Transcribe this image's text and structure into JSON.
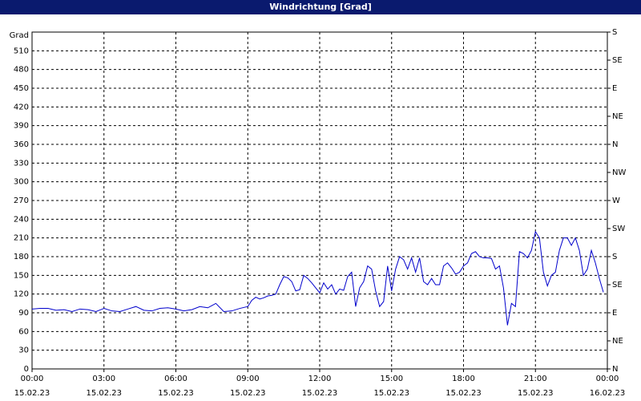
{
  "chart_data": {
    "type": "line",
    "title": "Windrichtung [Grad]",
    "y_label": "Grad",
    "x": [
      0,
      20,
      40,
      60,
      80,
      100,
      120,
      140,
      160,
      180,
      200,
      220,
      240,
      260,
      280,
      300,
      320,
      340,
      360,
      380,
      400,
      420,
      440,
      460,
      480,
      500,
      520,
      540,
      550,
      560,
      570,
      580,
      590,
      600,
      610,
      620,
      630,
      640,
      650,
      660,
      670,
      680,
      690,
      700,
      710,
      720,
      730,
      740,
      750,
      760,
      770,
      780,
      790,
      800,
      810,
      820,
      830,
      840,
      850,
      860,
      870,
      880,
      890,
      900,
      910,
      920,
      930,
      940,
      950,
      960,
      970,
      980,
      990,
      1000,
      1010,
      1020,
      1030,
      1040,
      1050,
      1060,
      1070,
      1080,
      1090,
      1100,
      1110,
      1120,
      1130,
      1140,
      1150,
      1160,
      1170,
      1180,
      1190,
      1200,
      1210,
      1220,
      1230,
      1240,
      1250,
      1260,
      1270,
      1280,
      1290,
      1300,
      1310,
      1320,
      1330,
      1340,
      1350,
      1360,
      1370,
      1380,
      1390,
      1400,
      1410,
      1420,
      1430
    ],
    "series": [
      {
        "name": "Windrichtung",
        "color": "#0000cc",
        "values": [
          96,
          97,
          97,
          94,
          95,
          92,
          96,
          95,
          92,
          97,
          93,
          92,
          96,
          100,
          94,
          93,
          97,
          98,
          96,
          93,
          95,
          100,
          98,
          105,
          92,
          93,
          97,
          100,
          110,
          115,
          112,
          114,
          117,
          118,
          120,
          135,
          148,
          146,
          140,
          125,
          127,
          150,
          145,
          138,
          130,
          122,
          138,
          128,
          135,
          120,
          128,
          126,
          148,
          155,
          100,
          130,
          140,
          165,
          160,
          125,
          100,
          108,
          165,
          125,
          160,
          180,
          175,
          160,
          178,
          155,
          178,
          140,
          135,
          145,
          135,
          135,
          165,
          170,
          162,
          152,
          155,
          165,
          170,
          185,
          188,
          180,
          178,
          178,
          177,
          160,
          165,
          130,
          70,
          105,
          100,
          188,
          185,
          178,
          190,
          220,
          210,
          155,
          133,
          150,
          155,
          190,
          210,
          210,
          198,
          210,
          190,
          150,
          160,
          190,
          170,
          145,
          123
        ]
      }
    ],
    "xlim": [
      0,
      1440
    ],
    "xticks": [
      {
        "value": 0,
        "label": "00:00",
        "date": "15.02.23"
      },
      {
        "value": 180,
        "label": "03:00",
        "date": "15.02.23"
      },
      {
        "value": 360,
        "label": "06:00",
        "date": "15.02.23"
      },
      {
        "value": 540,
        "label": "09:00",
        "date": "15.02.23"
      },
      {
        "value": 720,
        "label": "12:00",
        "date": "15.02.23"
      },
      {
        "value": 900,
        "label": "15:00",
        "date": "15.02.23"
      },
      {
        "value": 1080,
        "label": "18:00",
        "date": "15.02.23"
      },
      {
        "value": 1260,
        "label": "21:00",
        "date": "15.02.23"
      },
      {
        "value": 1440,
        "label": "00:00",
        "date": "16.02.23"
      }
    ],
    "ylim": [
      0,
      540
    ],
    "yticks": [
      0,
      30,
      60,
      90,
      120,
      150,
      180,
      210,
      240,
      270,
      300,
      330,
      360,
      390,
      420,
      450,
      480,
      510
    ],
    "y2lim": [
      0,
      540
    ],
    "y2ticks": [
      {
        "value": 0,
        "label": "N"
      },
      {
        "value": 45,
        "label": "NE"
      },
      {
        "value": 90,
        "label": "E"
      },
      {
        "value": 135,
        "label": "SE"
      },
      {
        "value": 180,
        "label": "S"
      },
      {
        "value": 225,
        "label": "SW"
      },
      {
        "value": 270,
        "label": "W"
      },
      {
        "value": 315,
        "label": "NW"
      },
      {
        "value": 360,
        "label": "N"
      },
      {
        "value": 405,
        "label": "NE"
      },
      {
        "value": 450,
        "label": "E"
      },
      {
        "value": 495,
        "label": "SE"
      },
      {
        "value": 540,
        "label": "S"
      }
    ],
    "grid": true
  }
}
